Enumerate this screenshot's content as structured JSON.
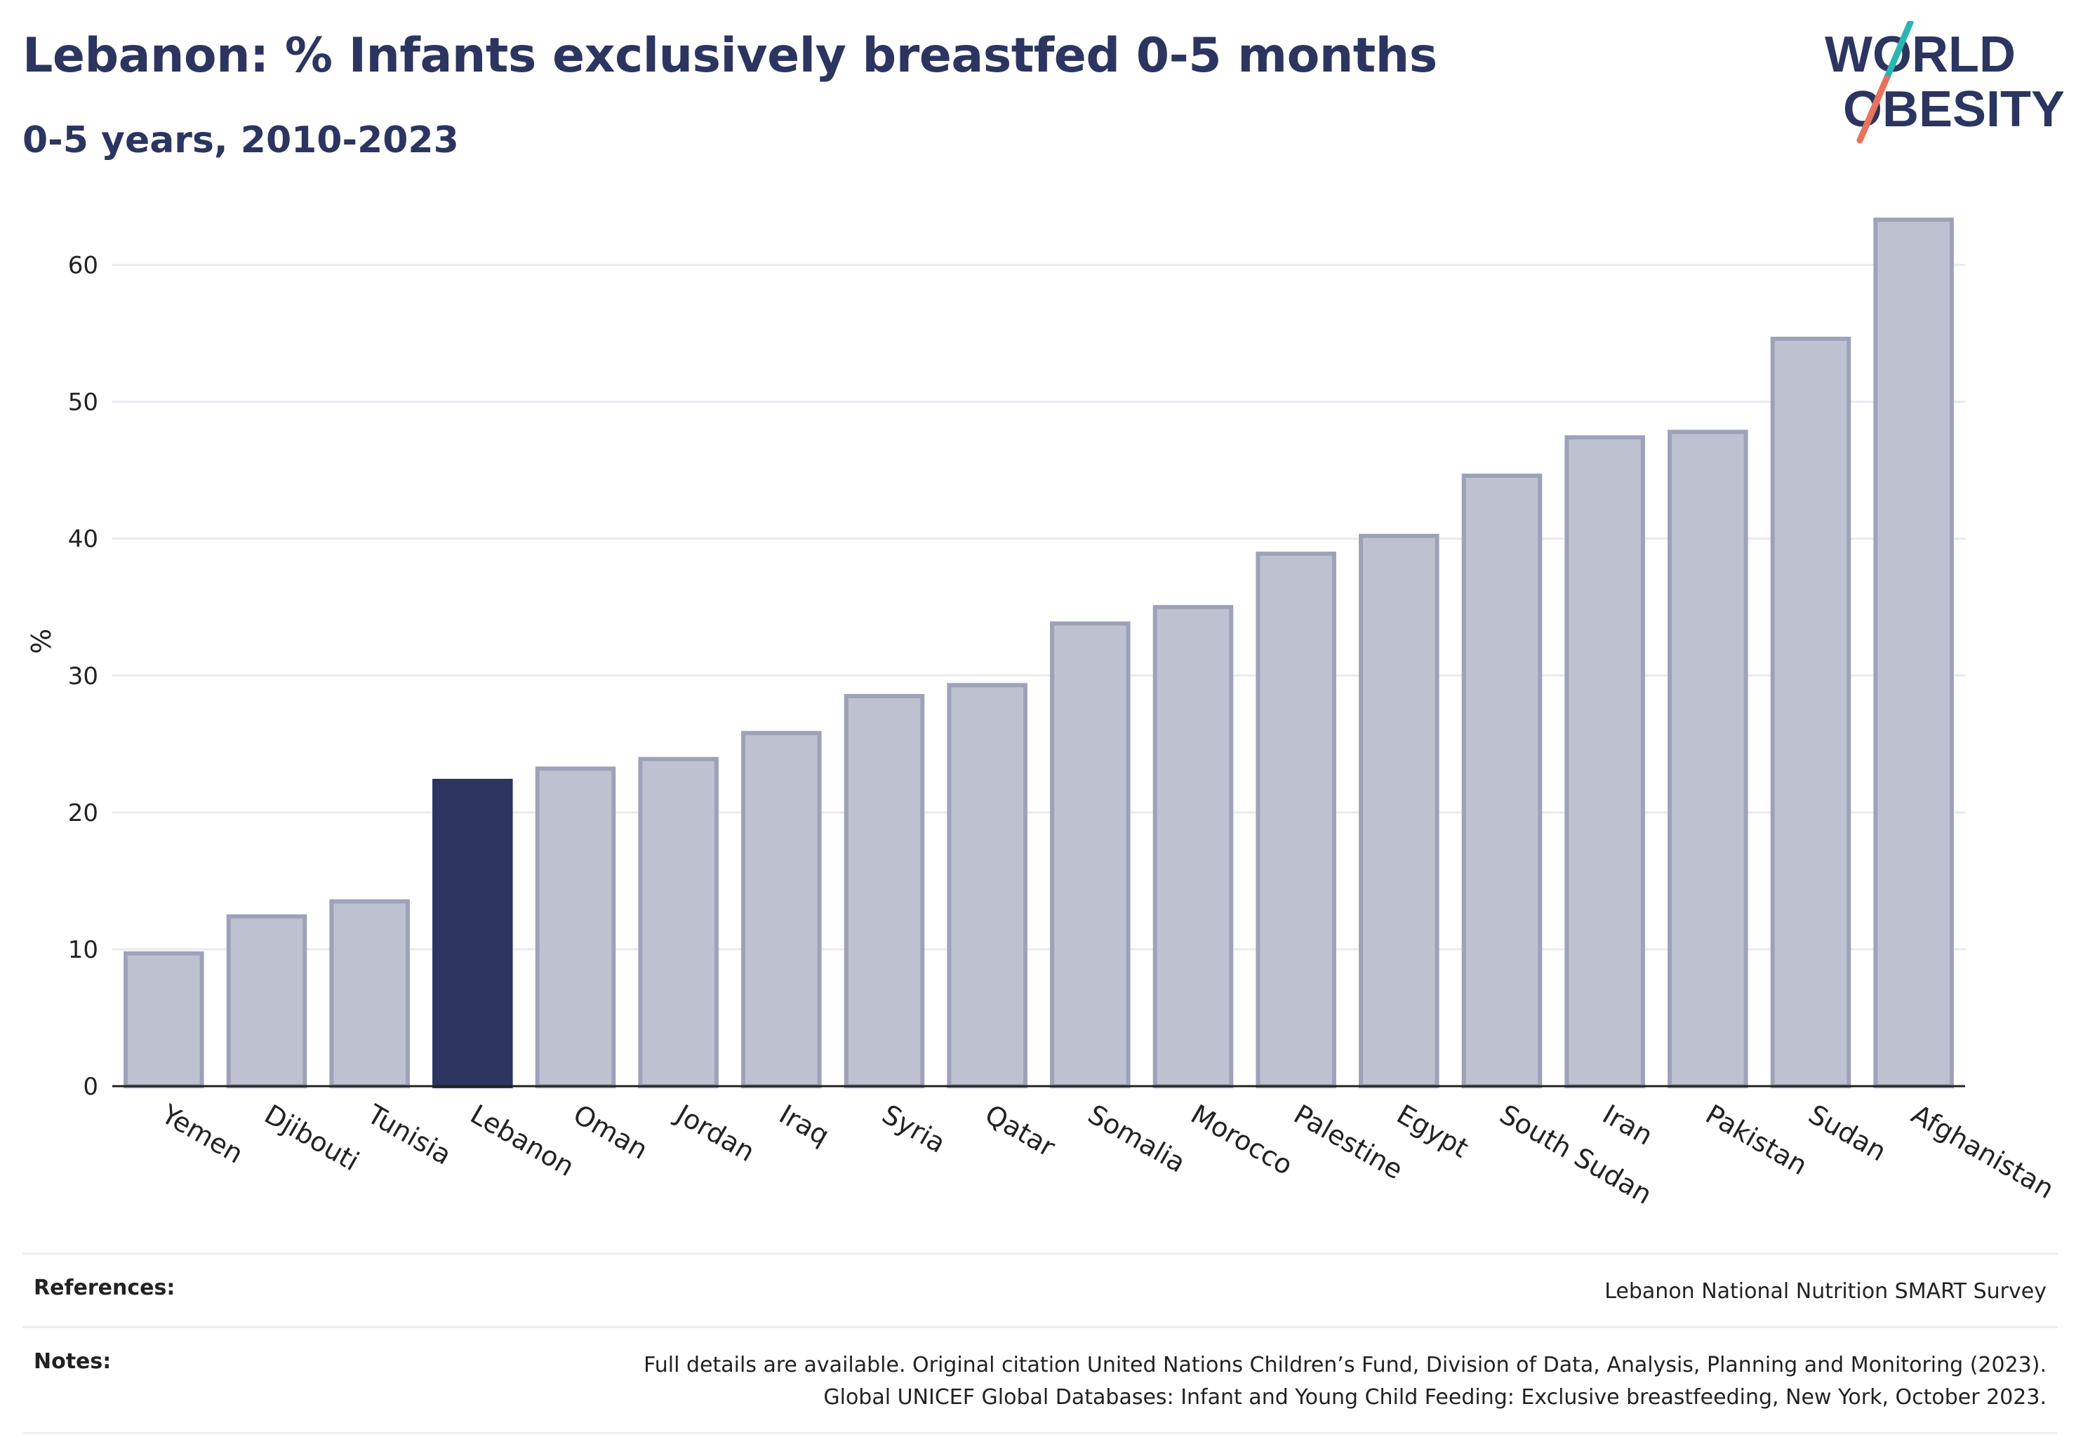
{
  "header": {
    "title": "Lebanon: % Infants exclusively breastfed 0-5 months",
    "subtitle": "0-5 years, 2010-2023"
  },
  "logo": {
    "line1": "WORLD",
    "line2": "OBESITY"
  },
  "chart_data": {
    "type": "bar",
    "categories": [
      "Yemen",
      "Djibouti",
      "Tunisia",
      "Lebanon",
      "Oman",
      "Jordan",
      "Iraq",
      "Syria",
      "Qatar",
      "Somalia",
      "Morocco",
      "Palestine",
      "Egypt",
      "South Sudan",
      "Iran",
      "Pakistan",
      "Sudan",
      "Afghanistan"
    ],
    "values": [
      9.7,
      12.4,
      13.5,
      22.3,
      23.2,
      23.9,
      25.8,
      28.5,
      29.3,
      33.8,
      35.0,
      38.9,
      40.2,
      44.6,
      47.4,
      47.8,
      54.6,
      63.3
    ],
    "highlight": "Lebanon",
    "title": "Lebanon: % Infants exclusively breastfed 0-5 months",
    "subtitle": "0-5 years, 2010-2023",
    "xlabel": "",
    "ylabel": "%",
    "ylim": [
      0,
      65
    ],
    "yticks": [
      0,
      10,
      20,
      30,
      40,
      50,
      60
    ],
    "grid": true,
    "colors": {
      "highlight": "#2b3560",
      "bar_fill": "#bec2d0",
      "bar_stroke": "#9da2b9",
      "grid": "#e9eaf0",
      "axis": "#222222"
    }
  },
  "footer": {
    "references_label": "References:",
    "references_value": "Lebanon National Nutrition SMART Survey",
    "notes_label": "Notes:",
    "notes_line1": "Full details are available. Original citation United Nations Children’s Fund, Division of Data, Analysis, Planning and Monitoring (2023).",
    "notes_line2": "Global UNICEF Global Databases: Infant and Young Child Feeding: Exclusive breastfeeding, New York, October 2023."
  }
}
